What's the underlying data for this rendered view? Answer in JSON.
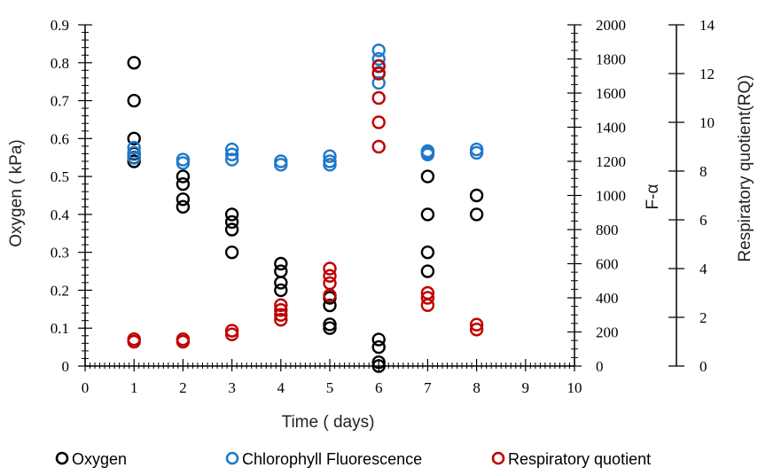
{
  "chart_data": {
    "type": "scatter",
    "xlabel": "Time ( days)",
    "ylabel": "Oxygen ( kPa)",
    "y2label": "F-α",
    "y3label": "Respiratory quotient(RQ)",
    "xlim": [
      0,
      10
    ],
    "ylim": [
      0,
      0.9
    ],
    "y2lim": [
      0,
      2000
    ],
    "y3lim": [
      0,
      14
    ],
    "x_ticks": [
      "0",
      "1",
      "2",
      "3",
      "4",
      "5",
      "6",
      "7",
      "8",
      "9",
      "10"
    ],
    "y_ticks": [
      "0",
      "0.1",
      "0.2",
      "0.3",
      "0.4",
      "0.5",
      "0.6",
      "0.7",
      "0.8",
      "0.9"
    ],
    "y2_ticks": [
      "0",
      "200",
      "400",
      "600",
      "800",
      "1000",
      "1200",
      "1400",
      "1600",
      "1800",
      "2000"
    ],
    "y3_ticks": [
      "0",
      "2",
      "4",
      "6",
      "8",
      "10",
      "12",
      "14"
    ],
    "grid": false,
    "legend_position": "bottom",
    "series": [
      {
        "name": "Oxygen",
        "axis": "left",
        "color": "#000000",
        "points": [
          [
            1,
            0.8
          ],
          [
            1,
            0.7
          ],
          [
            1,
            0.6
          ],
          [
            1,
            0.56
          ],
          [
            1,
            0.55
          ],
          [
            1,
            0.54
          ],
          [
            2,
            0.5
          ],
          [
            2,
            0.48
          ],
          [
            2,
            0.44
          ],
          [
            2,
            0.42
          ],
          [
            3,
            0.4
          ],
          [
            3,
            0.38
          ],
          [
            3,
            0.36
          ],
          [
            3,
            0.3
          ],
          [
            4,
            0.27
          ],
          [
            4,
            0.25
          ],
          [
            4,
            0.22
          ],
          [
            4,
            0.2
          ],
          [
            5,
            0.18
          ],
          [
            5,
            0.16
          ],
          [
            5,
            0.11
          ],
          [
            5,
            0.1
          ],
          [
            6,
            0.07
          ],
          [
            6,
            0.05
          ],
          [
            6,
            0.01
          ],
          [
            6,
            0.0
          ],
          [
            7,
            0.5
          ],
          [
            7,
            0.4
          ],
          [
            7,
            0.3
          ],
          [
            7,
            0.25
          ],
          [
            8,
            0.45
          ],
          [
            8,
            0.4
          ]
        ]
      },
      {
        "name": "Chlorophyll Fluorescence",
        "axis": "right1",
        "color": "#1f78c8",
        "points": [
          [
            1,
            1280
          ],
          [
            1,
            1250
          ],
          [
            1,
            1220
          ],
          [
            2,
            1210
          ],
          [
            2,
            1190
          ],
          [
            3,
            1270
          ],
          [
            3,
            1240
          ],
          [
            3,
            1210
          ],
          [
            4,
            1200
          ],
          [
            4,
            1180
          ],
          [
            5,
            1230
          ],
          [
            5,
            1200
          ],
          [
            5,
            1180
          ],
          [
            6,
            1850
          ],
          [
            6,
            1800
          ],
          [
            6,
            1760
          ],
          [
            6,
            1720
          ],
          [
            6,
            1660
          ],
          [
            7,
            1260
          ],
          [
            7,
            1250
          ],
          [
            7,
            1240
          ],
          [
            8,
            1270
          ],
          [
            8,
            1250
          ]
        ]
      },
      {
        "name": "Respiratory quotient",
        "axis": "right2",
        "color": "#c00000",
        "points": [
          [
            1,
            1.0
          ],
          [
            1,
            1.1
          ],
          [
            2,
            1.0
          ],
          [
            2,
            1.1
          ],
          [
            3,
            1.3
          ],
          [
            3,
            1.45
          ],
          [
            4,
            1.9
          ],
          [
            4,
            2.1
          ],
          [
            4,
            2.3
          ],
          [
            4,
            2.5
          ],
          [
            5,
            2.9
          ],
          [
            5,
            3.4
          ],
          [
            5,
            3.7
          ],
          [
            5,
            4.0
          ],
          [
            6,
            9.0
          ],
          [
            6,
            10.0
          ],
          [
            6,
            11.0
          ],
          [
            6,
            12.0
          ],
          [
            6,
            12.3
          ],
          [
            7,
            2.5
          ],
          [
            7,
            2.8
          ],
          [
            7,
            3.0
          ],
          [
            8,
            1.5
          ],
          [
            8,
            1.7
          ]
        ]
      }
    ]
  }
}
